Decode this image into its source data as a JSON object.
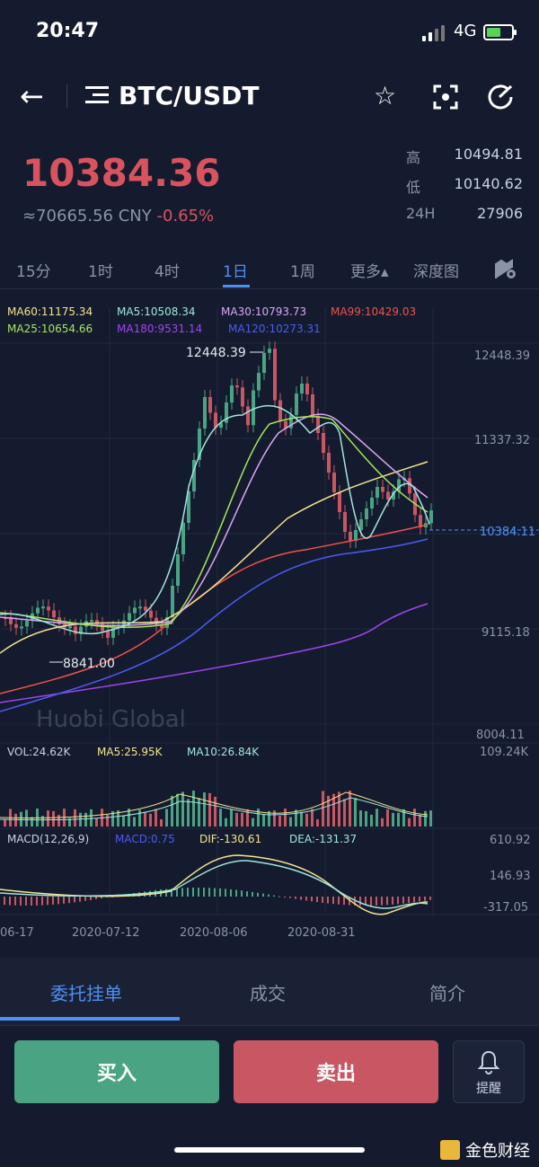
{
  "status": {
    "time": "20:47",
    "network": "4G"
  },
  "header": {
    "pair": "BTC/USDT"
  },
  "ticker": {
    "price": "10384.36",
    "cny": "≈70665.56 CNY",
    "change": "-0.65%",
    "high_label": "高",
    "high": "10494.81",
    "low_label": "低",
    "low": "10140.62",
    "vol_label": "24H",
    "vol": "27906"
  },
  "periods": [
    "15分",
    "1时",
    "4时",
    "1日",
    "1周",
    "更多▴",
    "深度图"
  ],
  "active_period": "1日",
  "chart_data": {
    "type": "candlestick",
    "ma_legend": [
      {
        "text": "MA60:11175.34",
        "color": "#f3e58f"
      },
      {
        "text": "MA5:10508.34",
        "color": "#9fe6dc"
      },
      {
        "text": "MA30:10793.73",
        "color": "#d9a6f5"
      },
      {
        "text": "MA99:10429.03",
        "color": "#f0524a"
      },
      {
        "text": "MA25:10654.66",
        "color": "#a6e65a"
      },
      {
        "text": "MA180:9531.14",
        "color": "#a044f0"
      },
      {
        "text": "MA120:10273.31",
        "color": "#4d5af5"
      }
    ],
    "y_ticks": [
      "12448.39",
      "11337.32",
      "9115.18",
      "8004.11"
    ],
    "current_price_tag": "10384.11",
    "max_label": "12448.39",
    "min_label": "8841.00",
    "x_ticks": [
      "06-17",
      "2020-07-12",
      "2020-08-06",
      "2020-08-31"
    ],
    "watermark": "Huobi Global",
    "volume": {
      "vol": "VOL:24.62K",
      "ma5": "MA5:25.95K",
      "ma10": "MA10:26.84K",
      "max": "109.24K"
    },
    "macd": {
      "params": "MACD(12,26,9)",
      "macd": "MACD:0.75",
      "dif": "DIF:-130.61",
      "dea": "DEA:-131.37",
      "ticks": [
        "610.92",
        "146.93",
        "-317.05"
      ]
    }
  },
  "bottom_tabs": [
    "委托挂单",
    "成交",
    "简介"
  ],
  "actions": {
    "buy": "买入",
    "sell": "卖出",
    "alert": "提醒"
  },
  "brand": "金色财经",
  "colors": {
    "up": "#4aa383",
    "down": "#c95763",
    "accent": "#4d8ff5"
  }
}
